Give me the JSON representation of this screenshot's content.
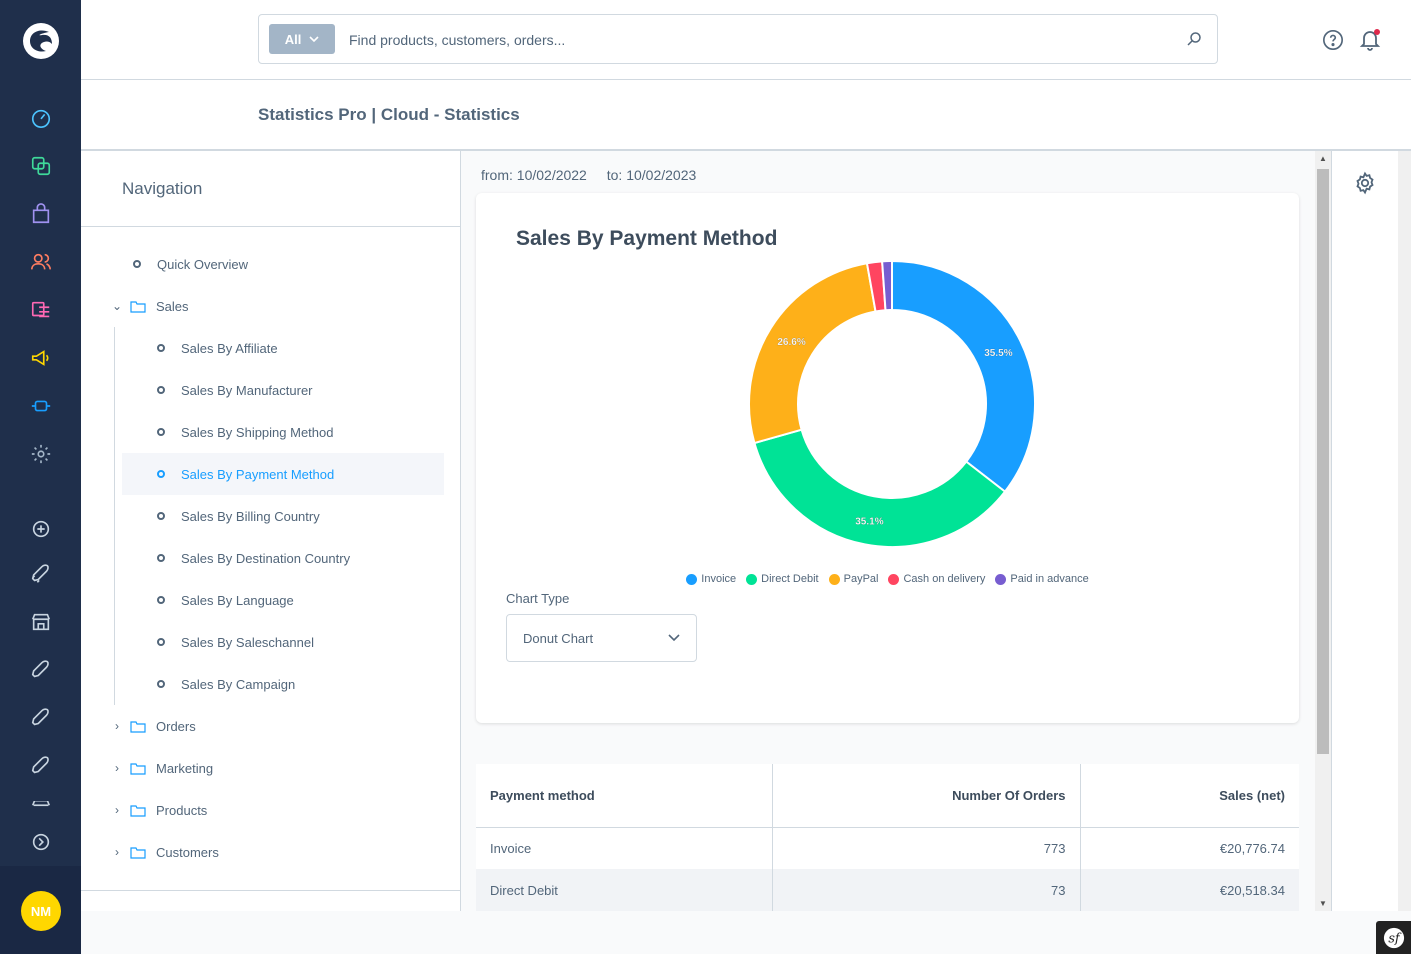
{
  "header": {
    "search_type": "All",
    "search_placeholder": "Find products, customers, orders..."
  },
  "page": {
    "title": "Statistics Pro | Cloud - Statistics"
  },
  "user": {
    "initials": "NM"
  },
  "navigation": {
    "heading": "Navigation",
    "quick_overview": "Quick Overview",
    "sales": "Sales",
    "sales_items": [
      "Sales By Affiliate",
      "Sales By Manufacturer",
      "Sales By Shipping Method",
      "Sales By Payment Method",
      "Sales By Billing Country",
      "Sales By Destination Country",
      "Sales By Language",
      "Sales By Saleschannel",
      "Sales By Campaign"
    ],
    "folders": [
      "Orders",
      "Marketing",
      "Products",
      "Customers"
    ]
  },
  "daterange": {
    "from": "from: 10/02/2022",
    "to": "to: 10/02/2023"
  },
  "chart_data": {
    "type": "pie",
    "title": "Sales By Payment Method",
    "categories": [
      "Invoice",
      "Direct Debit",
      "PayPal",
      "Cash on delivery",
      "Paid in advance"
    ],
    "values": [
      35.5,
      35.1,
      26.6,
      1.7,
      1.1
    ],
    "labels": [
      "35.5%",
      "35.1%",
      "26.6%",
      "",
      ""
    ],
    "colors": [
      "#189eff",
      "#00e396",
      "#feb019",
      "#ff4560",
      "#775dd0"
    ],
    "legend": "bottom"
  },
  "chart_type": {
    "label": "Chart Type",
    "value": "Donut Chart"
  },
  "table": {
    "headers": [
      "Payment method",
      "Number Of Orders",
      "Sales (net)"
    ],
    "rows": [
      [
        "Invoice",
        "773",
        "€20,776.74"
      ],
      [
        "Direct Debit",
        "73",
        "€20,518.34"
      ]
    ]
  }
}
